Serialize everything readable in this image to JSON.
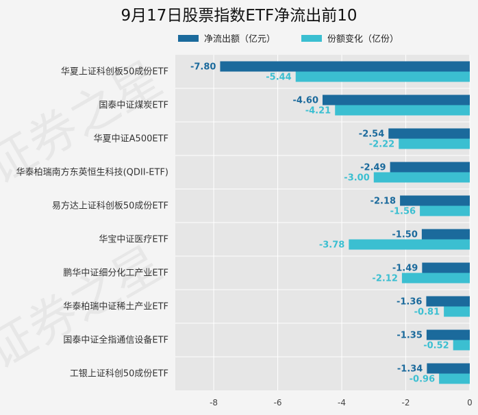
{
  "chart_data": {
    "type": "bar",
    "orientation": "horizontal",
    "title": "9月17日股票指数ETF净流出前10",
    "xlabel": "",
    "ylabel": "",
    "xlim": [
      -9.2,
      0
    ],
    "xticks": [
      -8,
      -6,
      -4,
      -2,
      0
    ],
    "grid": true,
    "legend_position": "top",
    "categories": [
      "华夏上证科创板50成份ETF",
      "国泰中证煤炭ETF",
      "华夏中证A500ETF",
      "华泰柏瑞南方东英恒生科技(QDII-ETF)",
      "易方达上证科创板50成份ETF",
      "华宝中证医疗ETF",
      "鹏华中证细分化工产业ETF",
      "华泰柏瑞中证稀土产业ETF",
      "国泰中证全指通信设备ETF",
      "工银上证科创50成份ETF"
    ],
    "series": [
      {
        "name": "净流出额（亿元）",
        "color": "#1b6a9c",
        "values": [
          -7.8,
          -4.6,
          -2.54,
          -2.49,
          -2.18,
          -1.5,
          -1.49,
          -1.36,
          -1.35,
          -1.34
        ],
        "labels": [
          "-7.80",
          "-4.60",
          "-2.54",
          "-2.49",
          "-2.18",
          "-1.50",
          "-1.49",
          "-1.36",
          "-1.35",
          "-1.34"
        ]
      },
      {
        "name": "份额变化（亿份）",
        "color": "#3bbfd1",
        "values": [
          -5.44,
          -4.21,
          -2.22,
          -3.0,
          -1.56,
          -3.78,
          -2.12,
          -0.81,
          -0.52,
          -0.96
        ],
        "labels": [
          "-5.44",
          "-4.21",
          "-2.22",
          "-3.00",
          "-1.56",
          "-3.78",
          "-2.12",
          "-0.81",
          "-0.52",
          "-0.96"
        ]
      }
    ]
  },
  "watermark": "证券之星"
}
